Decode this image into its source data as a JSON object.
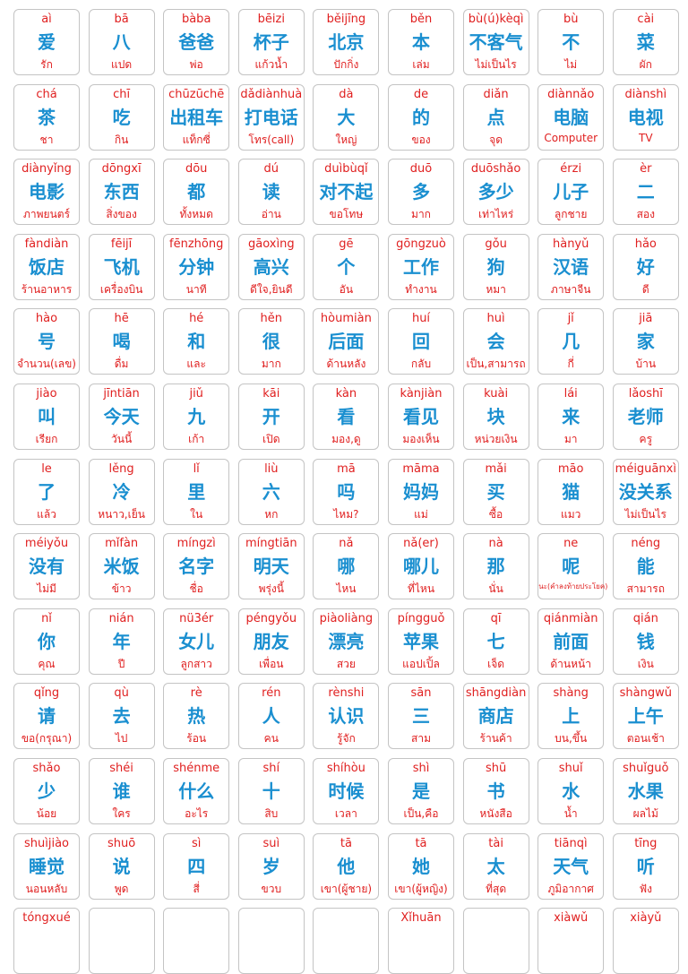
{
  "vocabulary": [
    [
      {
        "pinyin": "aì",
        "hanzi": "爱",
        "thai": "รัก"
      },
      {
        "pinyin": "bā",
        "hanzi": "八",
        "thai": "แปด"
      },
      {
        "pinyin": "bàba",
        "hanzi": "爸爸",
        "thai": "พ่อ"
      },
      {
        "pinyin": "bēizi",
        "hanzi": "杯子",
        "thai": "แก้วน้ำ"
      },
      {
        "pinyin": "běijīng",
        "hanzi": "北京",
        "thai": "ปักกิ่ง"
      },
      {
        "pinyin": "běn",
        "hanzi": "本",
        "thai": "เล่ม"
      },
      {
        "pinyin": "bù(ú)kèqì",
        "hanzi": "不客气",
        "thai": "ไม่เป็นไร"
      },
      {
        "pinyin": "bù",
        "hanzi": "不",
        "thai": "ไม่"
      },
      {
        "pinyin": "cài",
        "hanzi": "菜",
        "thai": "ผัก"
      }
    ],
    [
      {
        "pinyin": "chá",
        "hanzi": "茶",
        "thai": "ชา"
      },
      {
        "pinyin": "chī",
        "hanzi": "吃",
        "thai": "กิน"
      },
      {
        "pinyin": "chūzūchē",
        "hanzi": "出租车",
        "thai": "แท็กซี่"
      },
      {
        "pinyin": "dǎdiànhuà",
        "hanzi": "打电话",
        "thai": "โทร(call)"
      },
      {
        "pinyin": "dà",
        "hanzi": "大",
        "thai": "ใหญ่"
      },
      {
        "pinyin": "de",
        "hanzi": "的",
        "thai": "ของ"
      },
      {
        "pinyin": "diǎn",
        "hanzi": "点",
        "thai": "จุด"
      },
      {
        "pinyin": "diànnǎo",
        "hanzi": "电脑",
        "thai": "Computer"
      },
      {
        "pinyin": "diànshì",
        "hanzi": "电视",
        "thai": "TV"
      }
    ],
    [
      {
        "pinyin": "diànyǐng",
        "hanzi": "电影",
        "thai": "ภาพยนตร์"
      },
      {
        "pinyin": "dōngxī",
        "hanzi": "东西",
        "thai": "สิ่งของ"
      },
      {
        "pinyin": "dōu",
        "hanzi": "都",
        "thai": "ทั้งหมด"
      },
      {
        "pinyin": "dú",
        "hanzi": "读",
        "thai": "อ่าน"
      },
      {
        "pinyin": "duìbùqǐ",
        "hanzi": "对不起",
        "thai": "ขอโทษ"
      },
      {
        "pinyin": "duō",
        "hanzi": "多",
        "thai": "มาก"
      },
      {
        "pinyin": "duōshǎo",
        "hanzi": "多少",
        "thai": "เท่าไหร่"
      },
      {
        "pinyin": "érzi",
        "hanzi": "儿子",
        "thai": "ลูกชาย"
      },
      {
        "pinyin": "èr",
        "hanzi": "二",
        "thai": "สอง"
      }
    ],
    [
      {
        "pinyin": "fàndiàn",
        "hanzi": "饭店",
        "thai": "ร้านอาหาร"
      },
      {
        "pinyin": "fēijī",
        "hanzi": "飞机",
        "thai": "เครื่องบิน"
      },
      {
        "pinyin": "fēnzhōng",
        "hanzi": "分钟",
        "thai": "นาที"
      },
      {
        "pinyin": "gāoxìng",
        "hanzi": "高兴",
        "thai": "ดีใจ,ยินดี"
      },
      {
        "pinyin": "gē",
        "hanzi": "个",
        "thai": "อัน"
      },
      {
        "pinyin": "gōngzuò",
        "hanzi": "工作",
        "thai": "ทำงาน"
      },
      {
        "pinyin": "gǒu",
        "hanzi": "狗",
        "thai": "หมา"
      },
      {
        "pinyin": "hànyǔ",
        "hanzi": "汉语",
        "thai": "ภาษาจีน"
      },
      {
        "pinyin": "hǎo",
        "hanzi": "好",
        "thai": "ดี"
      }
    ],
    [
      {
        "pinyin": "hào",
        "hanzi": "号",
        "thai": "จำนวน(เลข)"
      },
      {
        "pinyin": "hē",
        "hanzi": "喝",
        "thai": "ดื่ม"
      },
      {
        "pinyin": "hé",
        "hanzi": "和",
        "thai": "และ"
      },
      {
        "pinyin": "hěn",
        "hanzi": "很",
        "thai": "มาก"
      },
      {
        "pinyin": "hòumiàn",
        "hanzi": "后面",
        "thai": "ด้านหลัง"
      },
      {
        "pinyin": "huí",
        "hanzi": "回",
        "thai": "กลับ"
      },
      {
        "pinyin": "huì",
        "hanzi": "会",
        "thai": "เป็น,สามารถ"
      },
      {
        "pinyin": "jǐ",
        "hanzi": "几",
        "thai": "กี่"
      },
      {
        "pinyin": "jiā",
        "hanzi": "家",
        "thai": "บ้าน"
      }
    ],
    [
      {
        "pinyin": "jiào",
        "hanzi": "叫",
        "thai": "เรียก"
      },
      {
        "pinyin": "jīntiān",
        "hanzi": "今天",
        "thai": "วันนี้"
      },
      {
        "pinyin": "jiǔ",
        "hanzi": "九",
        "thai": "เก้า"
      },
      {
        "pinyin": "kāi",
        "hanzi": "开",
        "thai": "เปิด"
      },
      {
        "pinyin": "kàn",
        "hanzi": "看",
        "thai": "มอง,ดู"
      },
      {
        "pinyin": "kànjiàn",
        "hanzi": "看见",
        "thai": "มองเห็น"
      },
      {
        "pinyin": "kuài",
        "hanzi": "块",
        "thai": "หน่วยเงิน"
      },
      {
        "pinyin": "lái",
        "hanzi": "来",
        "thai": "มา"
      },
      {
        "pinyin": "lǎoshī",
        "hanzi": "老师",
        "thai": "ครู"
      }
    ],
    [
      {
        "pinyin": "le",
        "hanzi": "了",
        "thai": "แล้ว"
      },
      {
        "pinyin": "lěng",
        "hanzi": "冷",
        "thai": "หนาว,เย็น"
      },
      {
        "pinyin": "lǐ",
        "hanzi": "里",
        "thai": "ใน"
      },
      {
        "pinyin": "liù",
        "hanzi": "六",
        "thai": "หก"
      },
      {
        "pinyin": "mā",
        "hanzi": "吗",
        "thai": "ไหม?"
      },
      {
        "pinyin": "māma",
        "hanzi": "妈妈",
        "thai": "แม่"
      },
      {
        "pinyin": "mǎi",
        "hanzi": "买",
        "thai": "ซื้อ"
      },
      {
        "pinyin": "māo",
        "hanzi": "猫",
        "thai": "แมว"
      },
      {
        "pinyin": "méiguānxì",
        "hanzi": "没关系",
        "thai": "ไม่เป็นไร"
      }
    ],
    [
      {
        "pinyin": "méiyǒu",
        "hanzi": "没有",
        "thai": "ไม่มี"
      },
      {
        "pinyin": "mǐfàn",
        "hanzi": "米饭",
        "thai": "ข้าว"
      },
      {
        "pinyin": "míngzì",
        "hanzi": "名字",
        "thai": "ชื่อ"
      },
      {
        "pinyin": "míngtiān",
        "hanzi": "明天",
        "thai": "พรุ่งนี้"
      },
      {
        "pinyin": "nǎ",
        "hanzi": "哪",
        "thai": "ไหน"
      },
      {
        "pinyin": "nǎ(er)",
        "hanzi": "哪儿",
        "thai": "ที่ไหน"
      },
      {
        "pinyin": "nà",
        "hanzi": "那",
        "thai": "นั่น"
      },
      {
        "pinyin": "ne",
        "hanzi": "呢",
        "thai": "นะ(คำลงท้ายประโยค)"
      },
      {
        "pinyin": "néng",
        "hanzi": "能",
        "thai": "สามารถ"
      }
    ],
    [
      {
        "pinyin": "nǐ",
        "hanzi": "你",
        "thai": "คุณ"
      },
      {
        "pinyin": "nián",
        "hanzi": "年",
        "thai": "ปี"
      },
      {
        "pinyin": "nü3ér",
        "hanzi": "女儿",
        "thai": "ลูกสาว"
      },
      {
        "pinyin": "péngyǒu",
        "hanzi": "朋友",
        "thai": "เพื่อน"
      },
      {
        "pinyin": "piàoliàng",
        "hanzi": "漂亮",
        "thai": "สวย"
      },
      {
        "pinyin": "píngguǒ",
        "hanzi": "苹果",
        "thai": "แอปเปิ้ล"
      },
      {
        "pinyin": "qī",
        "hanzi": "七",
        "thai": "เจ็ด"
      },
      {
        "pinyin": "qiánmiàn",
        "hanzi": "前面",
        "thai": "ด้านหน้า"
      },
      {
        "pinyin": "qián",
        "hanzi": "钱",
        "thai": "เงิน"
      }
    ],
    [
      {
        "pinyin": "qǐng",
        "hanzi": "请",
        "thai": "ขอ(กรุณา)"
      },
      {
        "pinyin": "qù",
        "hanzi": "去",
        "thai": "ไป"
      },
      {
        "pinyin": "rè",
        "hanzi": "热",
        "thai": "ร้อน"
      },
      {
        "pinyin": "rén",
        "hanzi": "人",
        "thai": "คน"
      },
      {
        "pinyin": "rènshi",
        "hanzi": "认识",
        "thai": "รู้จัก"
      },
      {
        "pinyin": "sān",
        "hanzi": "三",
        "thai": "สาม"
      },
      {
        "pinyin": "shāngdiàn",
        "hanzi": "商店",
        "thai": "ร้านค้า"
      },
      {
        "pinyin": "shàng",
        "hanzi": "上",
        "thai": "บน,ขึ้น"
      },
      {
        "pinyin": "shàngwǔ",
        "hanzi": "上午",
        "thai": "ตอนเช้า"
      }
    ],
    [
      {
        "pinyin": "shǎo",
        "hanzi": "少",
        "thai": "น้อย"
      },
      {
        "pinyin": "shéi",
        "hanzi": "谁",
        "thai": "ใคร"
      },
      {
        "pinyin": "shénme",
        "hanzi": "什么",
        "thai": "อะไร"
      },
      {
        "pinyin": "shí",
        "hanzi": "十",
        "thai": "สิบ"
      },
      {
        "pinyin": "shíhòu",
        "hanzi": "时候",
        "thai": "เวลา"
      },
      {
        "pinyin": "shì",
        "hanzi": "是",
        "thai": "เป็น,คือ"
      },
      {
        "pinyin": "shū",
        "hanzi": "书",
        "thai": "หนังสือ"
      },
      {
        "pinyin": "shuǐ",
        "hanzi": "水",
        "thai": "น้ำ"
      },
      {
        "pinyin": "shuǐguǒ",
        "hanzi": "水果",
        "thai": "ผลไม้"
      }
    ],
    [
      {
        "pinyin": "shuìjiào",
        "hanzi": "睡觉",
        "thai": "นอนหลับ"
      },
      {
        "pinyin": "shuō",
        "hanzi": "说",
        "thai": "พูด"
      },
      {
        "pinyin": "sì",
        "hanzi": "四",
        "thai": "สี่"
      },
      {
        "pinyin": "suì",
        "hanzi": "岁",
        "thai": "ขวบ"
      },
      {
        "pinyin": "tā",
        "hanzi": "他",
        "thai": "เขา(ผู้ชาย)"
      },
      {
        "pinyin": "tā",
        "hanzi": "她",
        "thai": "เขา(ผู้หญิง)"
      },
      {
        "pinyin": "tài",
        "hanzi": "太",
        "thai": "ที่สุด"
      },
      {
        "pinyin": "tiānqì",
        "hanzi": "天气",
        "thai": "ภูมิอากาศ"
      },
      {
        "pinyin": "tīng",
        "hanzi": "听",
        "thai": "ฟัง"
      }
    ],
    [
      {
        "pinyin": "tóngxué",
        "hanzi": "",
        "thai": ""
      },
      {
        "pinyin": "",
        "hanzi": "",
        "thai": ""
      },
      {
        "pinyin": "",
        "hanzi": "",
        "thai": ""
      },
      {
        "pinyin": "",
        "hanzi": "",
        "thai": ""
      },
      {
        "pinyin": "",
        "hanzi": "",
        "thai": ""
      },
      {
        "pinyin": "Xǐhuān",
        "hanzi": "",
        "thai": ""
      },
      {
        "pinyin": "",
        "hanzi": "",
        "thai": ""
      },
      {
        "pinyin": "xiàwǔ",
        "hanzi": "",
        "thai": ""
      },
      {
        "pinyin": "xiàyǔ",
        "hanzi": "",
        "thai": ""
      }
    ]
  ],
  "colors": {
    "pinyin": "#e02020",
    "hanzi": "#1a8fd0",
    "thai": "#e02020",
    "border": "#c4c4c4"
  }
}
